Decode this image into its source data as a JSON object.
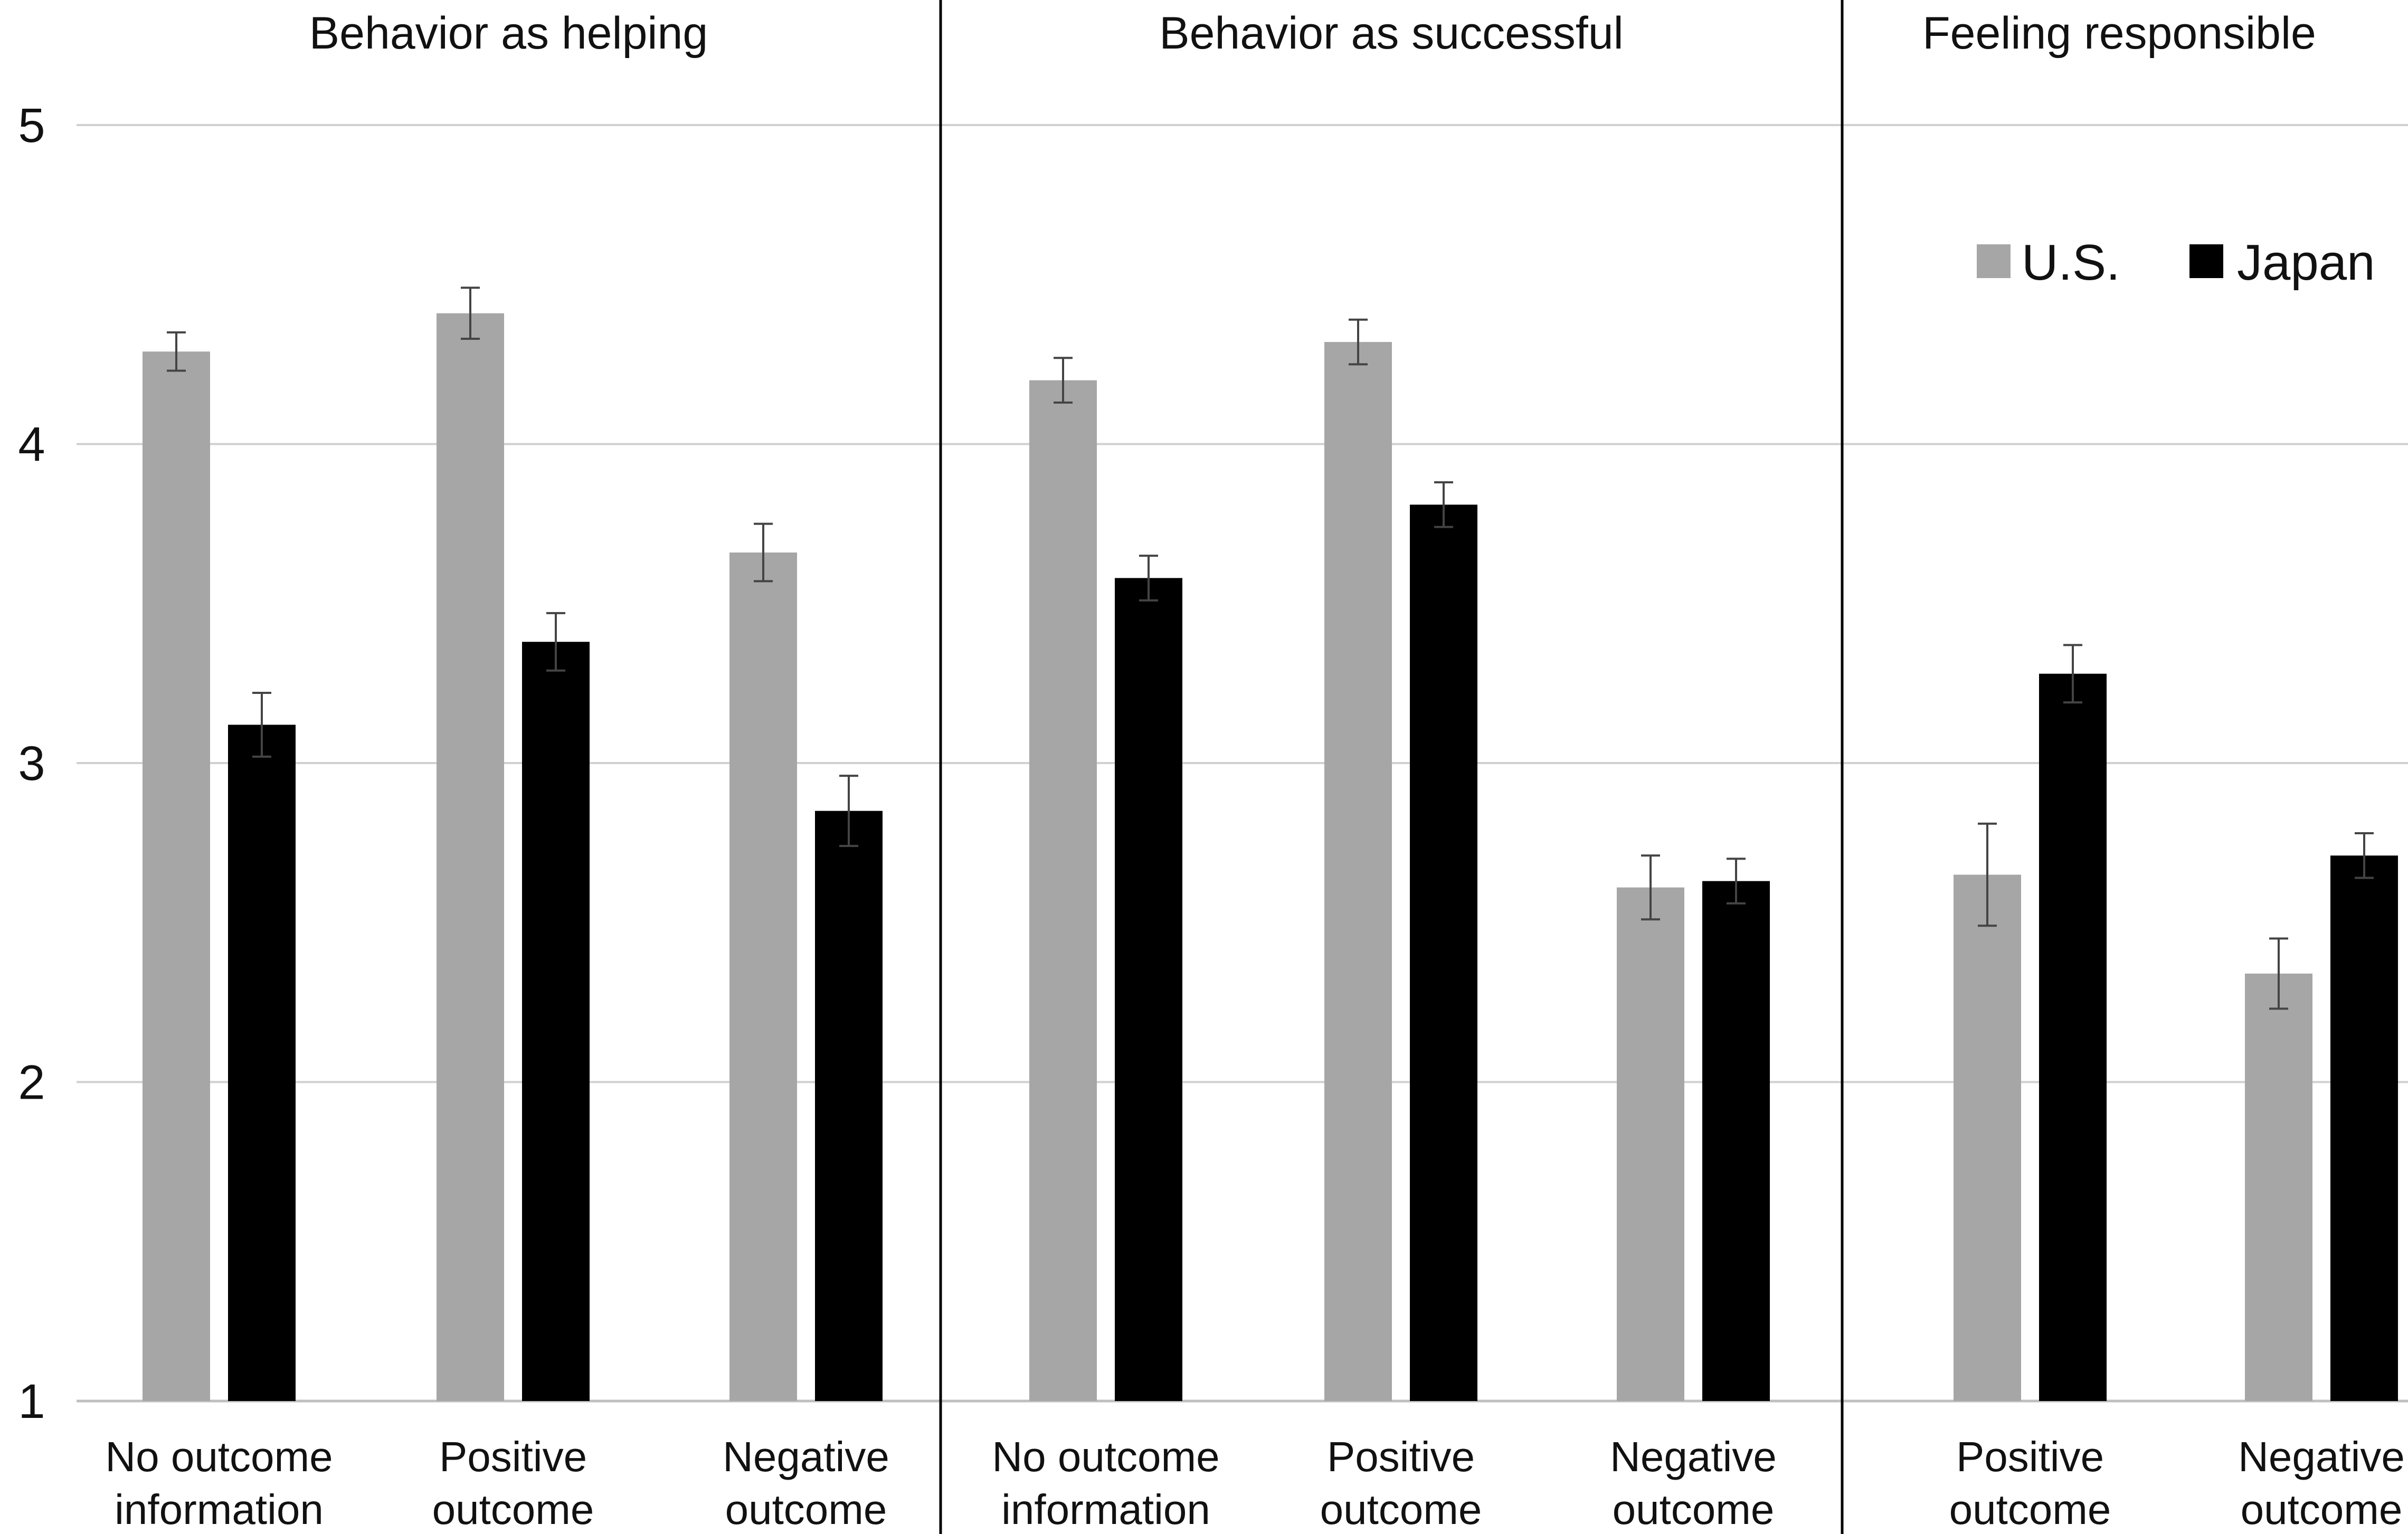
{
  "chart_data": {
    "type": "bar",
    "ylim": [
      1,
      5
    ],
    "yticks": [
      "1",
      "2",
      "3",
      "4",
      "5"
    ],
    "grid": true,
    "legend_position": "top-right",
    "series": [
      {
        "name": "U.S.",
        "color": "#a6a6a6"
      },
      {
        "name": "Japan",
        "color": "#000000"
      }
    ],
    "panels": [
      {
        "title": "Behavior as helping",
        "categories": [
          {
            "lines": [
              "No outcome",
              "information"
            ],
            "values": [
              4.29,
              3.12
            ],
            "errors": [
              0.06,
              0.1
            ]
          },
          {
            "lines": [
              "Positive",
              "outcome"
            ],
            "values": [
              4.41,
              3.38
            ],
            "errors": [
              0.08,
              0.09
            ]
          },
          {
            "lines": [
              "Negative",
              "outcome"
            ],
            "values": [
              3.66,
              2.85
            ],
            "errors": [
              0.09,
              0.11
            ]
          }
        ]
      },
      {
        "title": "Behavior as successful",
        "categories": [
          {
            "lines": [
              "No outcome",
              "information"
            ],
            "values": [
              4.2,
              3.58
            ],
            "errors": [
              0.07,
              0.07
            ]
          },
          {
            "lines": [
              "Positive",
              "outcome"
            ],
            "values": [
              4.32,
              3.81
            ],
            "errors": [
              0.07,
              0.07
            ]
          },
          {
            "lines": [
              "Negative",
              "outcome"
            ],
            "values": [
              2.61,
              2.63
            ],
            "errors": [
              0.1,
              0.07
            ]
          }
        ]
      },
      {
        "title": "Feeling responsible",
        "categories": [
          {
            "lines": [
              "Positive",
              "outcome"
            ],
            "values": [
              2.65,
              3.28
            ],
            "errors": [
              0.16,
              0.09
            ]
          },
          {
            "lines": [
              "Negative",
              "outcome"
            ],
            "values": [
              2.34,
              2.71
            ],
            "errors": [
              0.11,
              0.07
            ]
          }
        ]
      }
    ]
  }
}
